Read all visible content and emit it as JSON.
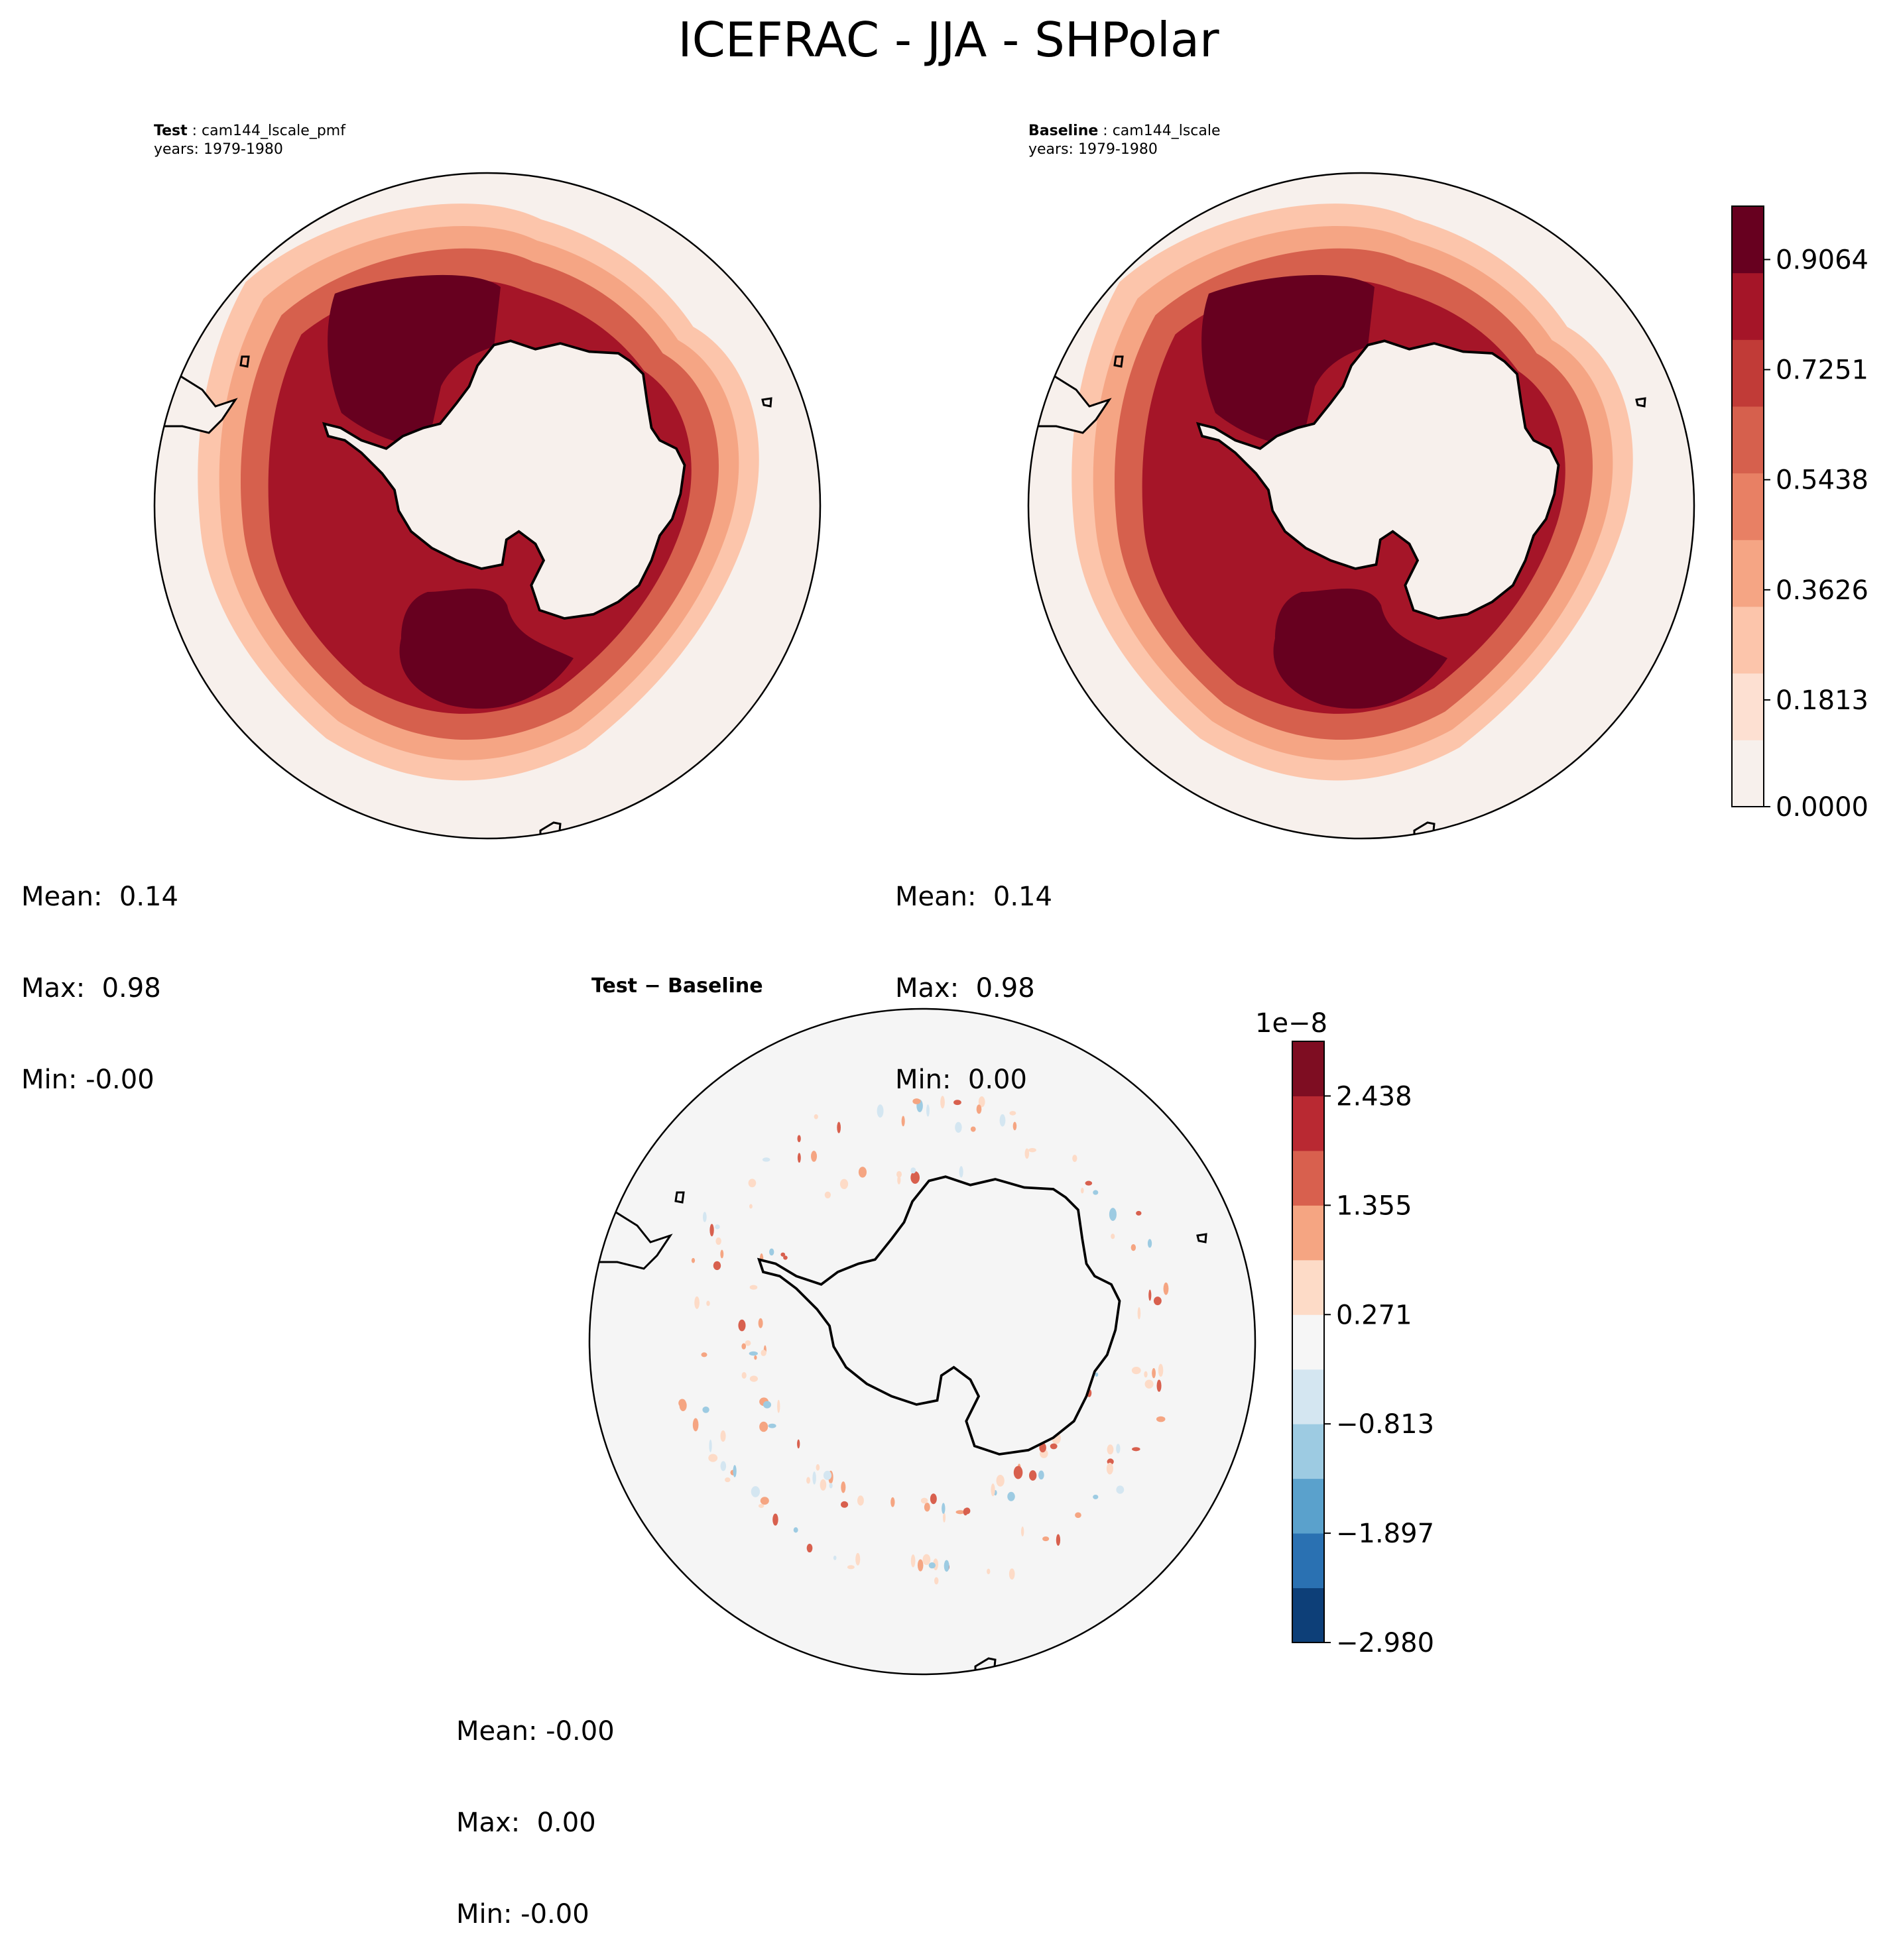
{
  "figure": {
    "title": "ICEFRAC - JJA - SHPolar"
  },
  "panels": {
    "test": {
      "label": "Test",
      "case": "cam144_lscale_pmf",
      "years": "years: 1979-1980",
      "stats": {
        "mean": "Mean:  0.14",
        "max": "Max:  0.98",
        "min": "Min: -0.00"
      }
    },
    "baseline": {
      "label": "Baseline",
      "case": "cam144_lscale",
      "years": "years: 1979-1980",
      "stats": {
        "mean": "Mean:  0.14",
        "max": "Max:  0.98",
        "min": "Min:  0.00"
      }
    },
    "diff": {
      "title": "Test − Baseline",
      "stats": {
        "mean": "Mean: -0.00",
        "max": "Max:  0.00",
        "min": "Min: -0.00"
      }
    }
  },
  "colorbars": {
    "main": {
      "tick_labels": [
        "0.9064",
        "0.7251",
        "0.5438",
        "0.3626",
        "0.1813",
        "0.0000"
      ],
      "colors": [
        "#f7f0ec",
        "#fde0d2",
        "#fcc5ab",
        "#f5a584",
        "#e88064",
        "#d6604d",
        "#c13b37",
        "#a51528",
        "#67001f"
      ]
    },
    "diff": {
      "exponent_label": "1e−8",
      "tick_labels": [
        "2.438",
        "1.355",
        "0.271",
        "−0.813",
        "−1.897",
        "−2.980"
      ],
      "colors": [
        "#0d3f78",
        "#2a71b2",
        "#5aa1cc",
        "#9dcbe2",
        "#d4e6f1",
        "#f6f6f6",
        "#fddbc7",
        "#f5a582",
        "#d8604e",
        "#b92932",
        "#7e0d22"
      ]
    }
  },
  "map_colors": {
    "land": "#f7f0ec",
    "ocean_low": "#f7f0ec",
    "ice_mid": "#c13b37",
    "ice_high": "#67001f",
    "diff_background": "#f5f5f5",
    "coastline": "#000000"
  }
}
